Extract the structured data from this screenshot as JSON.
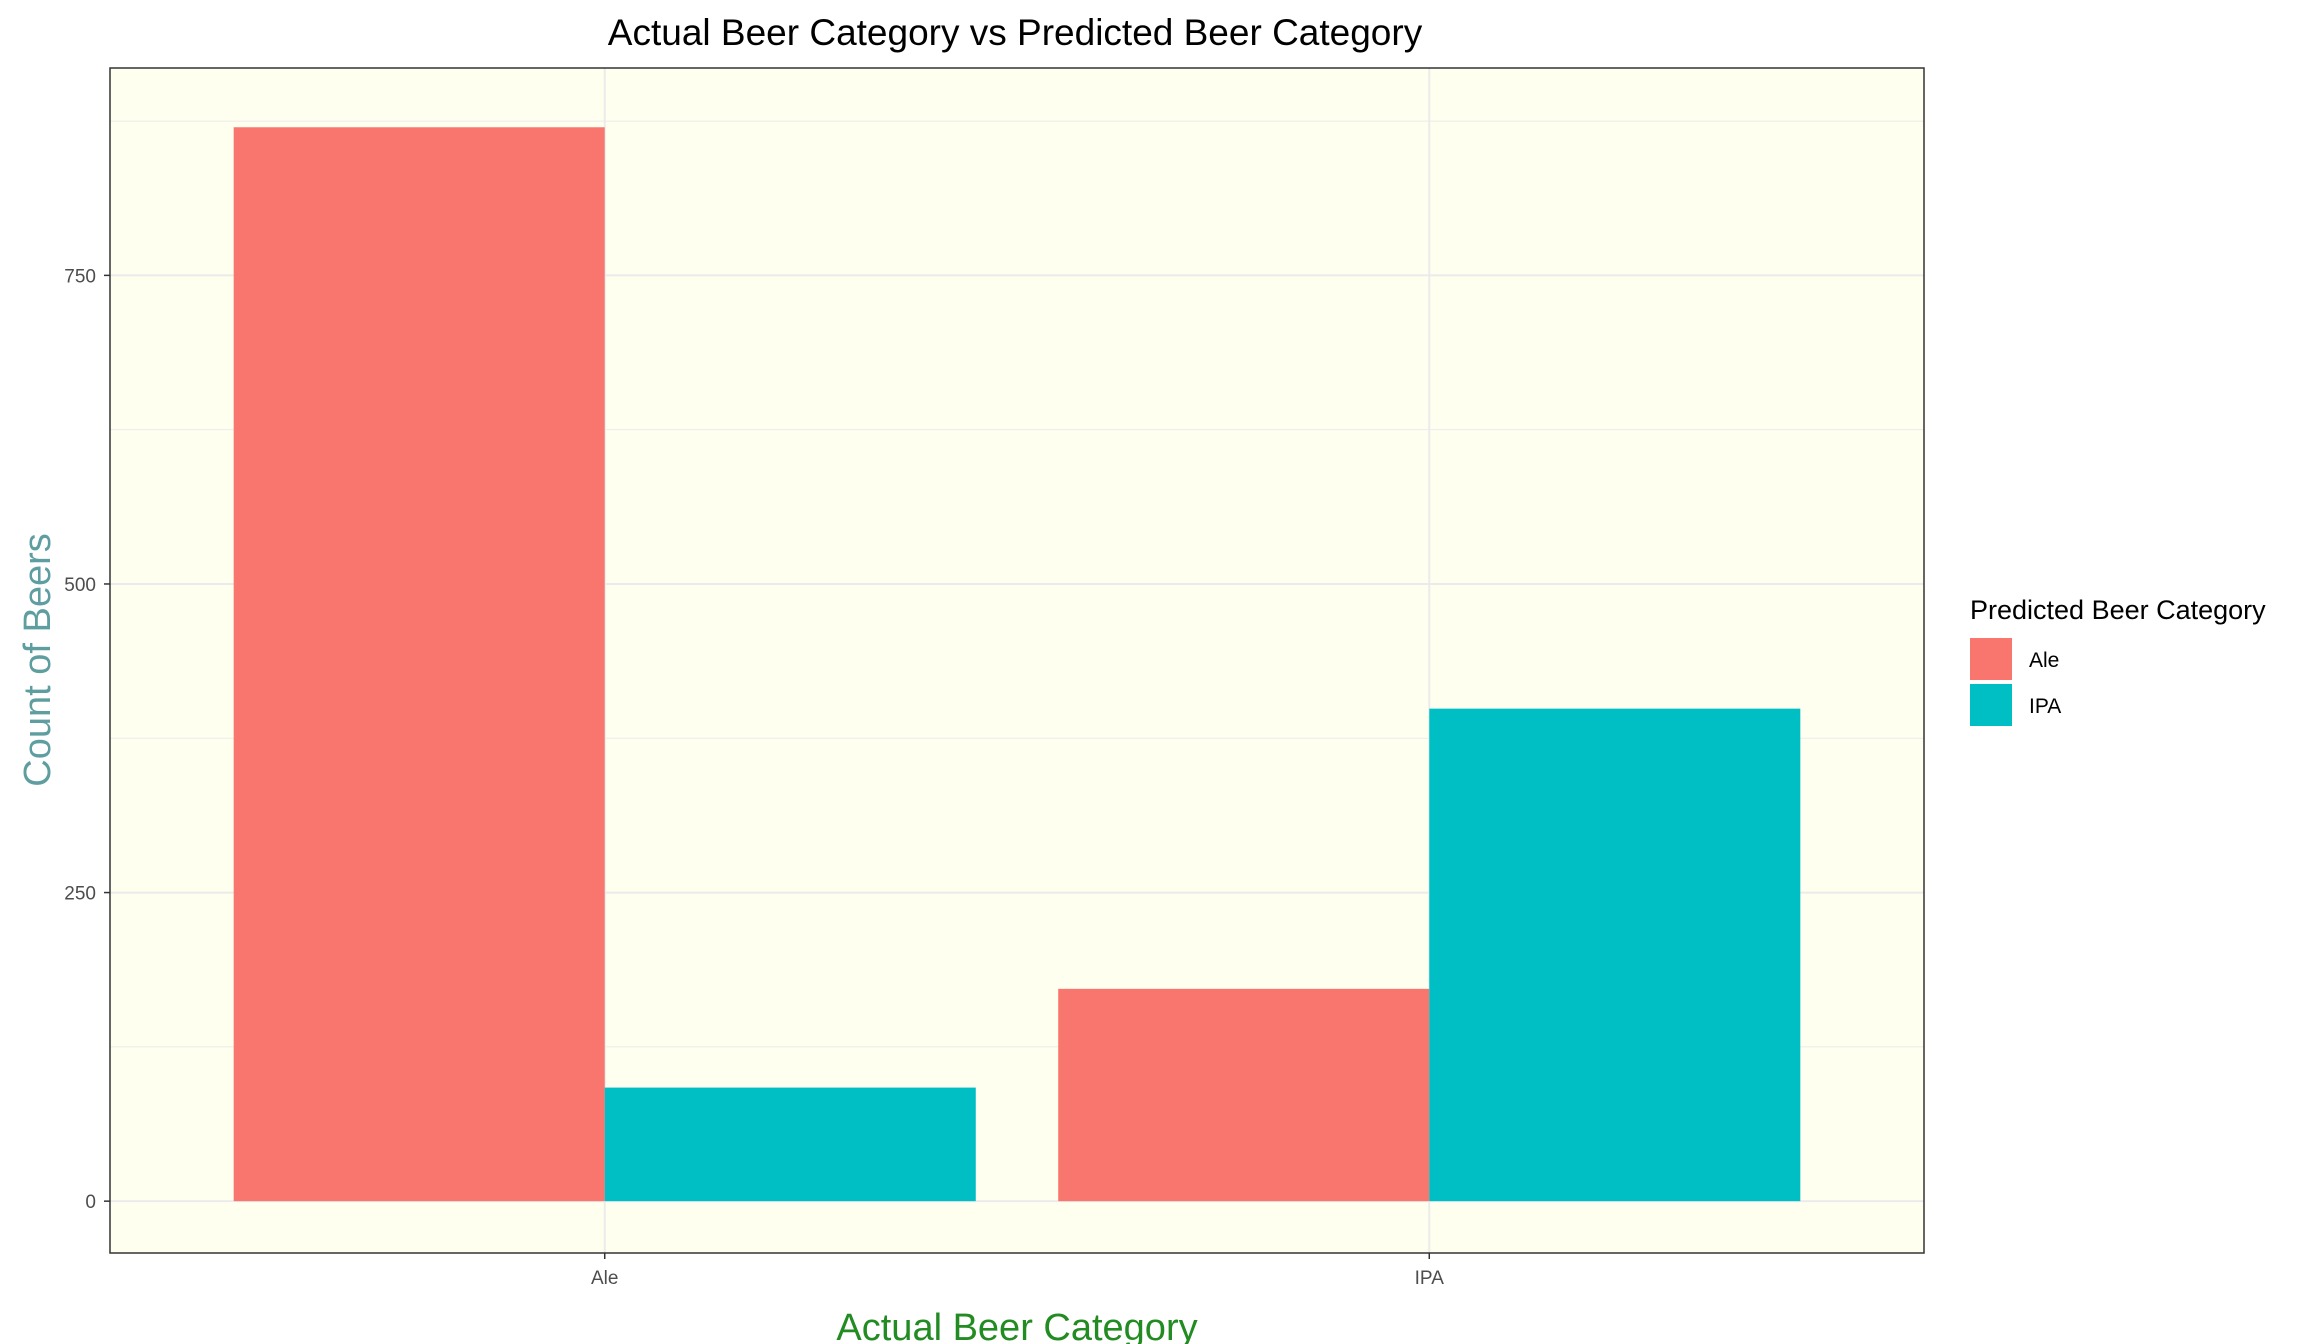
{
  "chart_data": {
    "type": "bar",
    "title": "Actual Beer Category vs Predicted Beer Category",
    "xlabel": "Actual Beer Category",
    "ylabel": "Count of Beers",
    "categories": [
      "Ale",
      "IPA"
    ],
    "series": [
      {
        "name": "Ale",
        "values": [
          870,
          172
        ],
        "color": "#F8766D"
      },
      {
        "name": "IPA",
        "values": [
          92,
          399
        ],
        "color": "#00BFC4"
      }
    ],
    "ylim": [
      -42,
      918
    ],
    "yticks": [
      0,
      250,
      500,
      750
    ],
    "grid": true,
    "legend": {
      "title": "Predicted Beer Category",
      "placement": "right"
    },
    "colors": {
      "panel_background": "#FFFFF0",
      "grid": "#EBEBEB",
      "xlabel": "#228B22",
      "ylabel": "#5F9EA0"
    }
  }
}
